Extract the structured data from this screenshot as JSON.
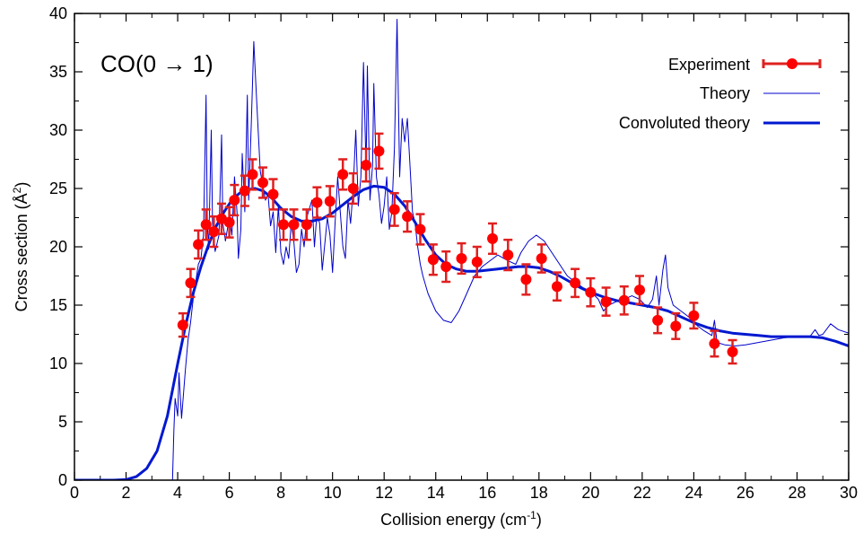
{
  "chart_data": {
    "type": "line",
    "title": "CO(0 → 1)",
    "xlabel": "Collision energy (cm",
    "xlabel_sup": "-1",
    "xlabel_end": ")",
    "ylabel": "Cross section (Å",
    "ylabel_sup": "2",
    "ylabel_end": ")",
    "xlim": [
      0,
      30
    ],
    "ylim": [
      0,
      40
    ],
    "grid": false,
    "legend_position": "top-right",
    "x_tick_labels": [
      "0",
      "2",
      "4",
      "6",
      "8",
      "10",
      "12",
      "14",
      "16",
      "18",
      "20",
      "22",
      "24",
      "26",
      "28",
      "30"
    ],
    "y_tick_labels": [
      "0",
      "5",
      "10",
      "15",
      "20",
      "25",
      "30",
      "35",
      "40"
    ],
    "colors": {
      "experiment": "#ff0000",
      "errorbar": "#e02020",
      "theory": "#0000cc",
      "convoluted": "#0018d0"
    },
    "series": [
      {
        "name": "Experiment",
        "kind": "errorbar",
        "points": [
          [
            4.2,
            13.3,
            1.0
          ],
          [
            4.5,
            16.9,
            1.2
          ],
          [
            4.8,
            20.2,
            1.2
          ],
          [
            5.1,
            21.9,
            1.3
          ],
          [
            5.4,
            21.3,
            1.3
          ],
          [
            5.7,
            22.4,
            1.3
          ],
          [
            6.0,
            22.1,
            1.3
          ],
          [
            6.2,
            24.0,
            1.3
          ],
          [
            6.6,
            24.8,
            1.3
          ],
          [
            6.9,
            26.2,
            1.3
          ],
          [
            7.3,
            25.5,
            1.3
          ],
          [
            7.7,
            24.5,
            1.3
          ],
          [
            8.1,
            21.9,
            1.3
          ],
          [
            8.5,
            21.9,
            1.3
          ],
          [
            9.0,
            21.9,
            1.3
          ],
          [
            9.4,
            23.8,
            1.3
          ],
          [
            9.9,
            23.9,
            1.3
          ],
          [
            10.4,
            26.2,
            1.3
          ],
          [
            10.8,
            25.0,
            1.3
          ],
          [
            11.3,
            27.0,
            1.4
          ],
          [
            11.8,
            28.2,
            1.5
          ],
          [
            12.4,
            23.2,
            1.4
          ],
          [
            12.9,
            22.6,
            1.3
          ],
          [
            13.4,
            21.5,
            1.3
          ],
          [
            13.9,
            18.9,
            1.3
          ],
          [
            14.4,
            18.3,
            1.3
          ],
          [
            15.0,
            19.0,
            1.3
          ],
          [
            15.6,
            18.7,
            1.3
          ],
          [
            16.2,
            20.7,
            1.3
          ],
          [
            16.8,
            19.3,
            1.3
          ],
          [
            17.5,
            17.2,
            1.3
          ],
          [
            18.1,
            19.0,
            1.2
          ],
          [
            18.7,
            16.6,
            1.2
          ],
          [
            19.4,
            16.9,
            1.2
          ],
          [
            20.0,
            16.1,
            1.2
          ],
          [
            20.6,
            15.3,
            1.2
          ],
          [
            21.3,
            15.4,
            1.2
          ],
          [
            21.9,
            16.3,
            1.2
          ],
          [
            22.6,
            13.7,
            1.1
          ],
          [
            23.3,
            13.2,
            1.1
          ],
          [
            24.0,
            14.1,
            1.1
          ],
          [
            24.8,
            11.7,
            1.1
          ],
          [
            25.5,
            11.0,
            1.0
          ]
        ]
      },
      {
        "name": "Theory",
        "kind": "thin-line",
        "points": [
          [
            3.8,
            0.0
          ],
          [
            3.85,
            4.2
          ],
          [
            3.9,
            7.0
          ],
          [
            4.0,
            5.5
          ],
          [
            4.05,
            9.2
          ],
          [
            4.15,
            5.3
          ],
          [
            4.3,
            9.5
          ],
          [
            4.4,
            12.0
          ],
          [
            4.5,
            13.5
          ],
          [
            4.6,
            15.5
          ],
          [
            4.7,
            17.0
          ],
          [
            4.8,
            18.5
          ],
          [
            4.9,
            19.0
          ],
          [
            5.0,
            21.0
          ],
          [
            5.1,
            33.0
          ],
          [
            5.15,
            22.0
          ],
          [
            5.2,
            19.8
          ],
          [
            5.3,
            30.0
          ],
          [
            5.35,
            22.0
          ],
          [
            5.45,
            19.6
          ],
          [
            5.6,
            21.0
          ],
          [
            5.7,
            29.6
          ],
          [
            5.75,
            22.0
          ],
          [
            5.85,
            20.5
          ],
          [
            6.0,
            22.5
          ],
          [
            6.1,
            21.0
          ],
          [
            6.2,
            26.0
          ],
          [
            6.3,
            23.0
          ],
          [
            6.35,
            19.0
          ],
          [
            6.45,
            21.5
          ],
          [
            6.5,
            28.0
          ],
          [
            6.6,
            23.0
          ],
          [
            6.7,
            33.0
          ],
          [
            6.75,
            24.0
          ],
          [
            6.85,
            30.5
          ],
          [
            6.95,
            37.6
          ],
          [
            7.05,
            33.0
          ],
          [
            7.2,
            26.5
          ],
          [
            7.4,
            24.0
          ],
          [
            7.5,
            24.5
          ],
          [
            7.6,
            21.8
          ],
          [
            7.7,
            23.0
          ],
          [
            7.8,
            19.5
          ],
          [
            7.9,
            23.5
          ],
          [
            8.0,
            19.5
          ],
          [
            8.1,
            18.5
          ],
          [
            8.2,
            20.0
          ],
          [
            8.3,
            19.0
          ],
          [
            8.4,
            22.0
          ],
          [
            8.5,
            20.5
          ],
          [
            8.6,
            17.8
          ],
          [
            8.7,
            18.5
          ],
          [
            8.8,
            21.5
          ],
          [
            8.9,
            20.0
          ],
          [
            9.0,
            22.5
          ],
          [
            9.2,
            24.0
          ],
          [
            9.3,
            20.0
          ],
          [
            9.4,
            23.0
          ],
          [
            9.5,
            22.0
          ],
          [
            9.6,
            18.0
          ],
          [
            9.7,
            20.2
          ],
          [
            9.8,
            22.5
          ],
          [
            9.9,
            21.0
          ],
          [
            10.0,
            17.8
          ],
          [
            10.1,
            22.0
          ],
          [
            10.2,
            26.0
          ],
          [
            10.3,
            23.0
          ],
          [
            10.4,
            20.0
          ],
          [
            10.5,
            19.0
          ],
          [
            10.6,
            24.0
          ],
          [
            10.7,
            22.0
          ],
          [
            10.8,
            25.0
          ],
          [
            10.9,
            30.0
          ],
          [
            11.0,
            23.5
          ],
          [
            11.1,
            26.0
          ],
          [
            11.2,
            35.8
          ],
          [
            11.3,
            26.5
          ],
          [
            11.35,
            35.5
          ],
          [
            11.45,
            24.0
          ],
          [
            11.55,
            27.0
          ],
          [
            11.6,
            34.0
          ],
          [
            11.7,
            26.0
          ],
          [
            11.8,
            24.5
          ],
          [
            11.9,
            22.0
          ],
          [
            12.0,
            23.5
          ],
          [
            12.1,
            26.0
          ],
          [
            12.2,
            21.5
          ],
          [
            12.3,
            23.0
          ],
          [
            12.4,
            28.5
          ],
          [
            12.5,
            39.5
          ],
          [
            12.6,
            26.0
          ],
          [
            12.7,
            31.0
          ],
          [
            12.8,
            29.0
          ],
          [
            12.9,
            31.0
          ],
          [
            13.0,
            27.0
          ],
          [
            13.1,
            23.0
          ],
          [
            13.2,
            22.0
          ],
          [
            13.3,
            20.0
          ],
          [
            13.4,
            18.5
          ],
          [
            13.5,
            17.5
          ],
          [
            13.7,
            16.0
          ],
          [
            14.0,
            14.5
          ],
          [
            14.3,
            13.7
          ],
          [
            14.6,
            13.5
          ],
          [
            14.9,
            14.5
          ],
          [
            15.2,
            16.0
          ],
          [
            15.5,
            17.5
          ],
          [
            15.8,
            18.3
          ],
          [
            16.1,
            18.8
          ],
          [
            16.4,
            19.3
          ],
          [
            16.8,
            18.8
          ],
          [
            17.1,
            18.5
          ],
          [
            17.3,
            19.5
          ],
          [
            17.6,
            20.5
          ],
          [
            17.9,
            21.0
          ],
          [
            18.2,
            20.5
          ],
          [
            18.5,
            19.5
          ],
          [
            18.8,
            18.5
          ],
          [
            19.1,
            17.5
          ],
          [
            19.4,
            17.0
          ],
          [
            19.7,
            16.5
          ],
          [
            20.0,
            16.2
          ],
          [
            20.3,
            15.5
          ],
          [
            20.5,
            14.5
          ],
          [
            20.7,
            15.0
          ],
          [
            21.0,
            15.3
          ],
          [
            21.3,
            15.5
          ],
          [
            21.6,
            15.8
          ],
          [
            21.9,
            15.5
          ],
          [
            22.2,
            14.8
          ],
          [
            22.4,
            15.5
          ],
          [
            22.55,
            17.5
          ],
          [
            22.65,
            15.0
          ],
          [
            22.8,
            18.0
          ],
          [
            22.9,
            19.3
          ],
          [
            23.0,
            16.5
          ],
          [
            23.2,
            15.0
          ],
          [
            23.5,
            14.5
          ],
          [
            23.8,
            14.0
          ],
          [
            24.1,
            13.3
          ],
          [
            24.4,
            12.8
          ],
          [
            24.7,
            12.4
          ],
          [
            24.8,
            13.7
          ],
          [
            24.9,
            11.8
          ],
          [
            25.2,
            11.6
          ],
          [
            25.6,
            11.5
          ],
          [
            26.0,
            11.6
          ],
          [
            26.5,
            11.8
          ],
          [
            27.0,
            12.0
          ],
          [
            27.5,
            12.2
          ],
          [
            28.0,
            12.3
          ],
          [
            28.5,
            12.3
          ],
          [
            28.7,
            12.9
          ],
          [
            28.85,
            12.4
          ],
          [
            29.0,
            12.5
          ],
          [
            29.3,
            13.4
          ],
          [
            29.6,
            12.9
          ],
          [
            30.0,
            12.6
          ]
        ]
      },
      {
        "name": "Convoluted theory",
        "kind": "thick-line",
        "points": [
          [
            0,
            0
          ],
          [
            1.5,
            0.0
          ],
          [
            2.0,
            0.05
          ],
          [
            2.4,
            0.3
          ],
          [
            2.8,
            1.0
          ],
          [
            3.2,
            2.5
          ],
          [
            3.6,
            5.5
          ],
          [
            4.0,
            10.0
          ],
          [
            4.3,
            13.2
          ],
          [
            4.6,
            16.0
          ],
          [
            4.9,
            18.3
          ],
          [
            5.2,
            20.2
          ],
          [
            5.5,
            21.8
          ],
          [
            5.8,
            23.0
          ],
          [
            6.1,
            24.0
          ],
          [
            6.4,
            24.6
          ],
          [
            6.7,
            24.9
          ],
          [
            7.0,
            25.0
          ],
          [
            7.3,
            24.8
          ],
          [
            7.6,
            24.3
          ],
          [
            8.0,
            23.3
          ],
          [
            8.4,
            22.6
          ],
          [
            8.8,
            22.2
          ],
          [
            9.2,
            22.2
          ],
          [
            9.6,
            22.4
          ],
          [
            10.0,
            22.9
          ],
          [
            10.4,
            23.6
          ],
          [
            10.8,
            24.3
          ],
          [
            11.2,
            24.9
          ],
          [
            11.6,
            25.2
          ],
          [
            12.0,
            25.1
          ],
          [
            12.4,
            24.5
          ],
          [
            12.8,
            23.5
          ],
          [
            13.2,
            22.1
          ],
          [
            13.6,
            20.6
          ],
          [
            14.0,
            19.3
          ],
          [
            14.4,
            18.5
          ],
          [
            14.8,
            18.1
          ],
          [
            15.2,
            17.9
          ],
          [
            15.6,
            17.9
          ],
          [
            16.0,
            18.0
          ],
          [
            16.4,
            18.1
          ],
          [
            16.8,
            18.2
          ],
          [
            17.2,
            18.3
          ],
          [
            17.6,
            18.3
          ],
          [
            18.0,
            18.2
          ],
          [
            18.4,
            17.9
          ],
          [
            18.8,
            17.5
          ],
          [
            19.2,
            17.0
          ],
          [
            19.6,
            16.5
          ],
          [
            20.0,
            16.1
          ],
          [
            20.5,
            15.7
          ],
          [
            21.0,
            15.4
          ],
          [
            21.5,
            15.2
          ],
          [
            22.0,
            15.0
          ],
          [
            22.5,
            14.8
          ],
          [
            23.0,
            14.5
          ],
          [
            23.5,
            14.0
          ],
          [
            24.0,
            13.5
          ],
          [
            24.5,
            13.1
          ],
          [
            25.0,
            12.8
          ],
          [
            25.5,
            12.6
          ],
          [
            26.0,
            12.5
          ],
          [
            26.5,
            12.4
          ],
          [
            27.0,
            12.3
          ],
          [
            27.5,
            12.3
          ],
          [
            28.0,
            12.3
          ],
          [
            28.5,
            12.3
          ],
          [
            29.0,
            12.2
          ],
          [
            29.5,
            11.9
          ],
          [
            30.0,
            11.5
          ]
        ]
      }
    ]
  }
}
